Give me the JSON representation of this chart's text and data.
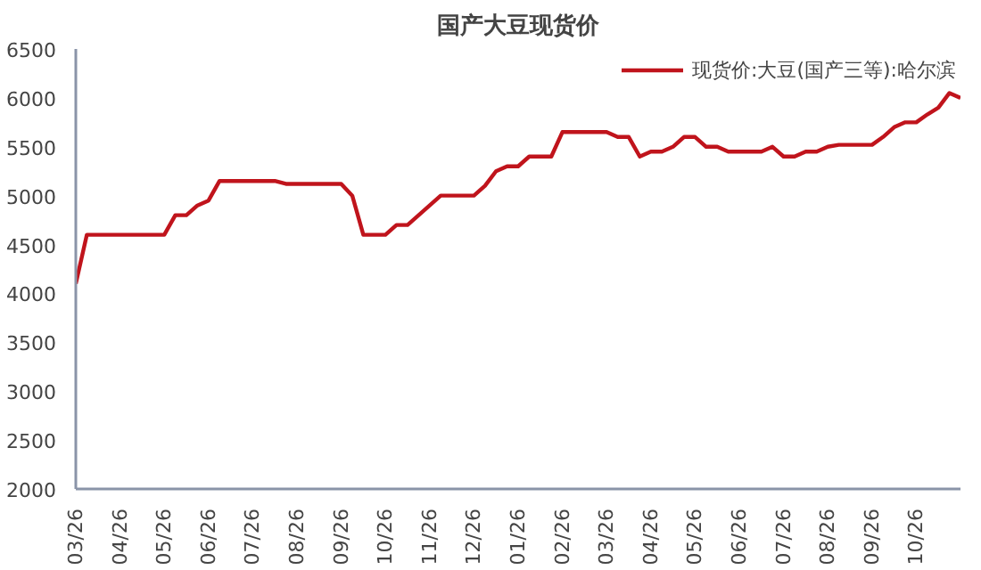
{
  "chart_data": {
    "type": "line",
    "title": "国产大豆现货价",
    "categories": [
      "03/26",
      null,
      null,
      null,
      "04/26",
      null,
      null,
      null,
      "05/26",
      null,
      null,
      null,
      "06/26",
      null,
      null,
      null,
      "07/26",
      null,
      null,
      null,
      "08/26",
      null,
      null,
      null,
      "09/26",
      null,
      null,
      null,
      "10/26",
      null,
      null,
      null,
      "11/26",
      null,
      null,
      null,
      "12/26",
      null,
      null,
      null,
      "01/26",
      null,
      null,
      null,
      "02/26",
      null,
      null,
      null,
      "03/26",
      null,
      null,
      null,
      "04/26",
      null,
      null,
      null,
      "05/26",
      null,
      null,
      null,
      "06/26",
      null,
      null,
      null,
      "07/26",
      null,
      null,
      null,
      "08/26",
      null,
      null,
      null,
      "09/26",
      null,
      null,
      null,
      "10/26",
      null,
      null,
      null,
      null
    ],
    "series": [
      {
        "name": "现货价:大豆(国产三等):哈尔滨",
        "color": "#c0141c",
        "values": [
          4100,
          4600,
          4600,
          4600,
          4600,
          4600,
          4600,
          4600,
          4600,
          4800,
          4800,
          4900,
          4950,
          5150,
          5150,
          5150,
          5150,
          5150,
          5150,
          5120,
          5120,
          5120,
          5120,
          5120,
          5120,
          5000,
          4600,
          4600,
          4600,
          4700,
          4700,
          4800,
          4900,
          5000,
          5000,
          5000,
          5000,
          5100,
          5250,
          5300,
          5300,
          5400,
          5400,
          5400,
          5650,
          5650,
          5650,
          5650,
          5650,
          5600,
          5600,
          5400,
          5450,
          5450,
          5500,
          5600,
          5600,
          5500,
          5500,
          5450,
          5450,
          5450,
          5450,
          5500,
          5400,
          5400,
          5450,
          5450,
          5500,
          5520,
          5520,
          5520,
          5520,
          5600,
          5700,
          5750,
          5750,
          5830,
          5900,
          6050,
          6000
        ]
      }
    ],
    "ylim": [
      2000,
      6500
    ],
    "yticks": [
      2000,
      2500,
      3000,
      3500,
      4000,
      4500,
      5000,
      5500,
      6000,
      6500
    ],
    "grid": false,
    "legend": "top right",
    "marker": "none",
    "line_style": "solid"
  }
}
